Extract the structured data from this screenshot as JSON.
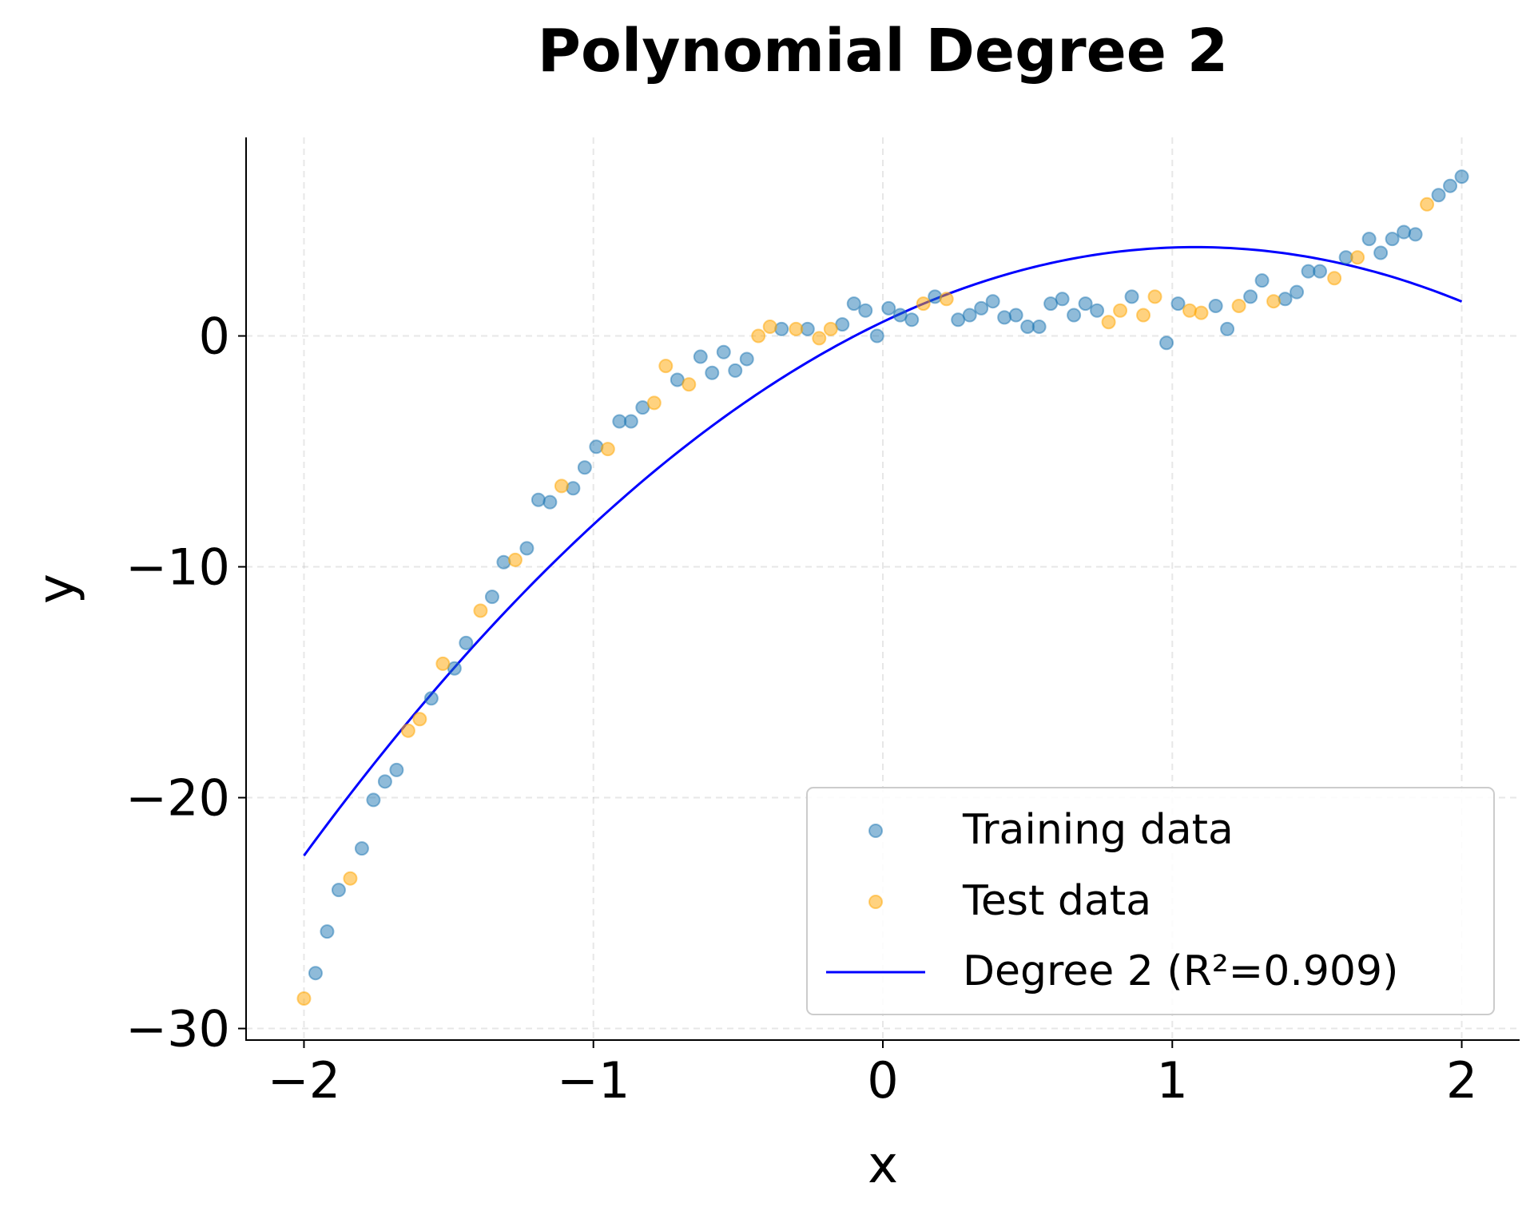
{
  "chart_data": {
    "type": "scatter",
    "title": "Polynomial Degree 2",
    "xlabel": "x",
    "ylabel": "y",
    "xlim": [
      -2.2,
      2.2
    ],
    "ylim": [
      -30.5,
      8.6
    ],
    "xticks": [
      -2,
      -1,
      0,
      1,
      2
    ],
    "xtick_labels": [
      "−2",
      "−1",
      "0",
      "1",
      "2"
    ],
    "yticks": [
      -30,
      -20,
      -10,
      0
    ],
    "ytick_labels": [
      "−30",
      "−20",
      "−10",
      "0"
    ],
    "grid": true,
    "legend_position": "lower-right",
    "series": [
      {
        "name": "Training data",
        "kind": "scatter",
        "color": "#1f77b4",
        "x": [
          -1.96,
          -1.92,
          -1.88,
          -1.8,
          -1.76,
          -1.72,
          -1.68,
          -1.56,
          -1.48,
          -1.44,
          -1.35,
          -1.31,
          -1.23,
          -1.19,
          -1.15,
          -1.07,
          -1.03,
          -0.99,
          -0.91,
          -0.87,
          -0.83,
          -0.71,
          -0.63,
          -0.59,
          -0.55,
          -0.51,
          -0.47,
          -0.35,
          -0.26,
          -0.14,
          -0.1,
          -0.06,
          -0.02,
          0.02,
          0.06,
          0.1,
          0.18,
          0.26,
          0.3,
          0.34,
          0.38,
          0.42,
          0.46,
          0.5,
          0.54,
          0.58,
          0.62,
          0.66,
          0.7,
          0.74,
          0.86,
          0.98,
          1.02,
          1.15,
          1.19,
          1.27,
          1.31,
          1.39,
          1.43,
          1.47,
          1.51,
          1.6,
          1.68,
          1.72,
          1.76,
          1.8,
          1.84,
          1.92,
          1.96,
          2.0
        ],
        "y": [
          -27.6,
          -25.8,
          -24.0,
          -22.2,
          -20.1,
          -19.3,
          -18.8,
          -15.7,
          -14.4,
          -13.3,
          -11.3,
          -9.8,
          -9.2,
          -7.1,
          -7.2,
          -6.6,
          -5.7,
          -4.8,
          -3.7,
          -3.7,
          -3.1,
          -1.9,
          -0.9,
          -1.6,
          -0.7,
          -1.5,
          -1.0,
          0.3,
          0.3,
          0.5,
          1.4,
          1.1,
          0.0,
          1.2,
          0.9,
          0.7,
          1.7,
          0.7,
          0.9,
          1.2,
          1.5,
          0.8,
          0.9,
          0.4,
          0.4,
          1.4,
          1.6,
          0.9,
          1.4,
          1.1,
          1.7,
          -0.3,
          1.4,
          1.3,
          0.3,
          1.7,
          2.4,
          1.6,
          1.9,
          2.8,
          2.8,
          3.4,
          4.2,
          3.6,
          4.2,
          4.5,
          4.4,
          6.1,
          6.5,
          6.9
        ]
      },
      {
        "name": "Test data",
        "kind": "scatter",
        "color": "#ffa500",
        "x": [
          -2.0,
          -1.84,
          -1.64,
          -1.6,
          -1.52,
          -1.39,
          -1.27,
          -1.11,
          -0.95,
          -0.79,
          -0.75,
          -0.67,
          -0.43,
          -0.39,
          -0.3,
          -0.22,
          -0.18,
          0.14,
          0.22,
          0.78,
          0.82,
          0.9,
          0.94,
          1.06,
          1.1,
          1.23,
          1.35,
          1.56,
          1.64,
          1.88
        ],
        "y": [
          -28.7,
          -23.5,
          -17.1,
          -16.6,
          -14.2,
          -11.9,
          -9.7,
          -6.5,
          -4.9,
          -2.9,
          -1.3,
          -2.1,
          0.0,
          0.4,
          0.3,
          -0.1,
          0.3,
          1.4,
          1.6,
          0.6,
          1.1,
          0.9,
          1.7,
          1.1,
          1.0,
          1.3,
          1.5,
          2.5,
          3.4,
          5.7
        ]
      },
      {
        "name": "Degree 2 (R²=0.909)",
        "kind": "line",
        "color": "#0000ff",
        "coefficients": [
          0.609,
          6.0,
          -2.78
        ],
        "x_range": [
          -2,
          2
        ]
      }
    ]
  }
}
